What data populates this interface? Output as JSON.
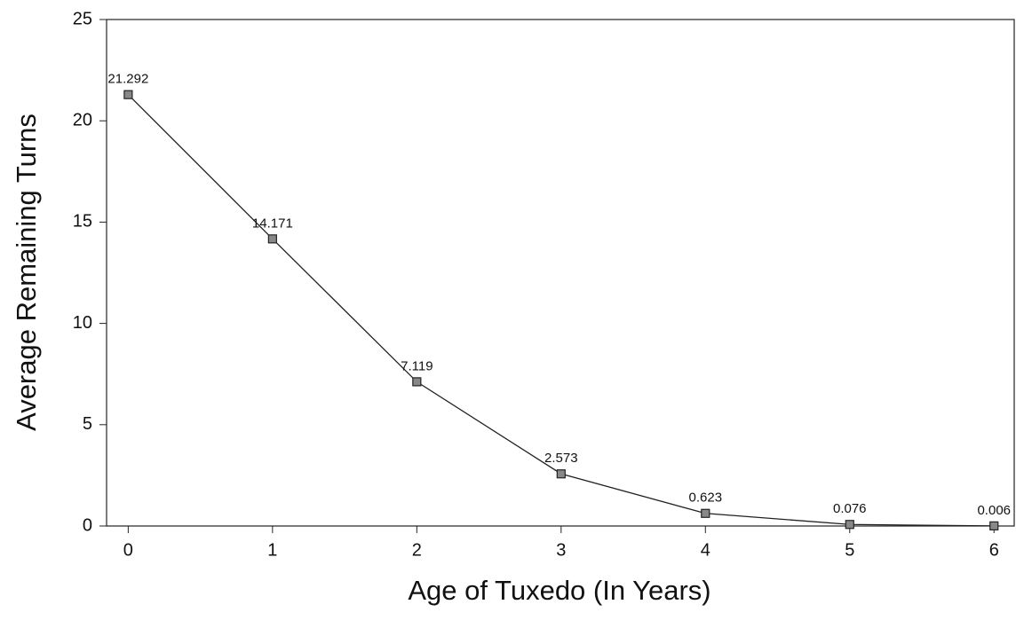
{
  "chart_data": {
    "type": "line",
    "x_label": "Age of Tuxedo (In Years)",
    "y_label": "Average Remaining Turns",
    "x": [
      0,
      1,
      2,
      3,
      4,
      5,
      6
    ],
    "series": [
      {
        "name": "Average Remaining Turns",
        "color": "#222222",
        "values": [
          21.292,
          14.171,
          7.119,
          2.573,
          0.623,
          0.076,
          0.006
        ]
      }
    ],
    "xlim": [
      -0.15,
      6.14
    ],
    "xticks": [
      0,
      1,
      2,
      3,
      4,
      5,
      6
    ],
    "ylim": [
      0,
      25
    ],
    "yticks": [
      0,
      5,
      10,
      15,
      20,
      25
    ],
    "grid": false,
    "marker_color": "#888888"
  }
}
